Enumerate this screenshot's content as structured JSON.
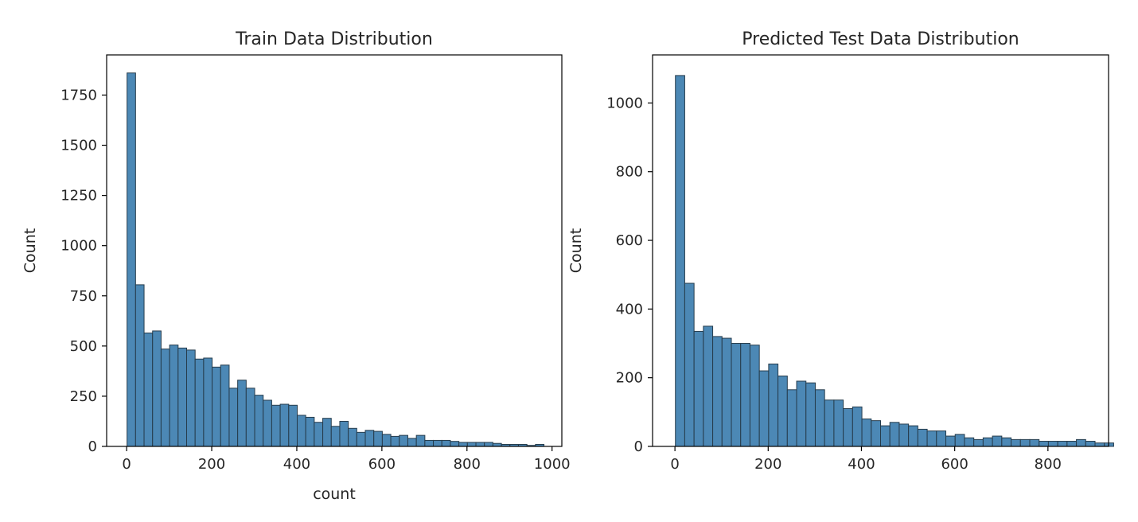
{
  "chart_data": [
    {
      "type": "bar",
      "title": "Train Data Distribution",
      "xlabel": "count",
      "ylabel": "Count",
      "bin_width": 20,
      "x_start": 1,
      "xlim": [
        -47,
        1023
      ],
      "ylim": [
        0,
        1950
      ],
      "xticks": [
        0,
        200,
        400,
        600,
        800,
        1000
      ],
      "yticks": [
        0,
        250,
        500,
        750,
        1000,
        1250,
        1500,
        1750
      ],
      "grid": false,
      "color": "#4c88b5",
      "values": [
        1860,
        805,
        565,
        575,
        485,
        505,
        490,
        480,
        435,
        440,
        395,
        405,
        290,
        330,
        290,
        255,
        230,
        205,
        210,
        205,
        155,
        145,
        120,
        140,
        100,
        125,
        90,
        70,
        80,
        75,
        60,
        50,
        55,
        40,
        55,
        30,
        30,
        30,
        25,
        20,
        20,
        20,
        20,
        15,
        10,
        10,
        10,
        5,
        10
      ]
    },
    {
      "type": "bar",
      "title": "Predicted Test Data Distribution",
      "xlabel": "",
      "ylabel": "Count",
      "bin_width": 20,
      "x_start": 1,
      "xlim": [
        -48,
        930
      ],
      "ylim": [
        0,
        1140
      ],
      "xticks": [
        0,
        200,
        400,
        600,
        800
      ],
      "yticks": [
        0,
        200,
        400,
        600,
        800,
        1000
      ],
      "grid": false,
      "color": "#4c88b5",
      "values": [
        1080,
        475,
        335,
        350,
        320,
        315,
        300,
        300,
        295,
        220,
        240,
        205,
        165,
        190,
        185,
        165,
        135,
        135,
        110,
        115,
        80,
        75,
        60,
        70,
        65,
        60,
        50,
        45,
        45,
        30,
        35,
        25,
        20,
        25,
        30,
        25,
        20,
        20,
        20,
        15,
        15,
        15,
        15,
        20,
        15,
        10,
        10
      ]
    }
  ]
}
